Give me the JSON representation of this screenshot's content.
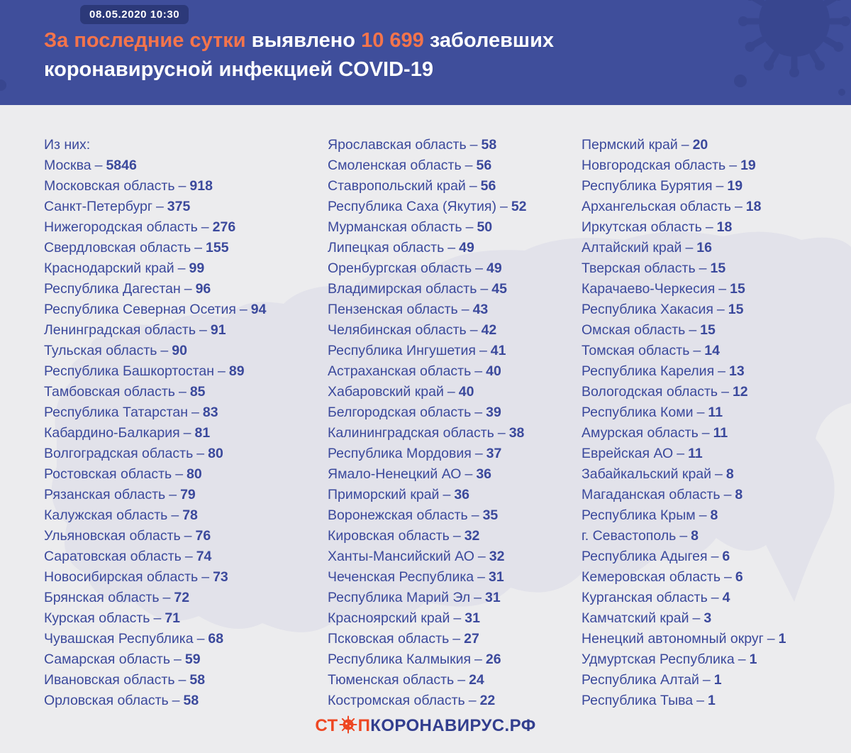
{
  "header": {
    "datetime": "08.05.2020 10:30",
    "title": {
      "highlight": "За последние сутки",
      "mid": " выявлено ",
      "number": "10 699",
      "tail": " заболевших",
      "line2": "коронавирусной инфекцией COVID-19"
    }
  },
  "body": {
    "intro": "Из них:",
    "separator": "–",
    "columns": [
      [
        {
          "region": "Москва",
          "value": "5846"
        },
        {
          "region": "Московская область",
          "value": "918"
        },
        {
          "region": "Санкт-Петербург",
          "value": "375"
        },
        {
          "region": "Нижегородская область",
          "value": "276"
        },
        {
          "region": "Свердловская область",
          "value": "155"
        },
        {
          "region": "Краснодарский край",
          "value": "99"
        },
        {
          "region": "Республика Дагестан",
          "value": "96"
        },
        {
          "region": "Республика Северная Осетия",
          "value": "94"
        },
        {
          "region": "Ленинградская область",
          "value": "91"
        },
        {
          "region": "Тульская область",
          "value": "90"
        },
        {
          "region": "Республика Башкортостан",
          "value": "89"
        },
        {
          "region": "Тамбовская область",
          "value": "85"
        },
        {
          "region": "Республика Татарстан",
          "value": "83"
        },
        {
          "region": "Кабардино-Балкария",
          "value": "81"
        },
        {
          "region": "Волгоградская область",
          "value": "80"
        },
        {
          "region": "Ростовская область",
          "value": "80"
        },
        {
          "region": "Рязанская область",
          "value": "79"
        },
        {
          "region": "Калужская область",
          "value": "78"
        },
        {
          "region": "Ульяновская область",
          "value": "76"
        },
        {
          "region": "Саратовская область",
          "value": "74"
        },
        {
          "region": "Новосибирская область",
          "value": "73"
        },
        {
          "region": "Брянская область",
          "value": "72"
        },
        {
          "region": "Курская область",
          "value": "71"
        },
        {
          "region": "Чувашская Республика",
          "value": "68"
        },
        {
          "region": "Самарская область",
          "value": "59"
        },
        {
          "region": "Ивановская область",
          "value": "58"
        },
        {
          "region": "Орловская область",
          "value": "58"
        }
      ],
      [
        {
          "region": "Ярославская область",
          "value": "58"
        },
        {
          "region": "Смоленская область",
          "value": "56"
        },
        {
          "region": "Ставропольский край",
          "value": "56"
        },
        {
          "region": "Республика Саха (Якутия)",
          "value": "52"
        },
        {
          "region": "Мурманская область",
          "value": "50"
        },
        {
          "region": "Липецкая область",
          "value": "49"
        },
        {
          "region": "Оренбургская область",
          "value": "49"
        },
        {
          "region": "Владимирская область",
          "value": "45"
        },
        {
          "region": "Пензенская область",
          "value": "43"
        },
        {
          "region": "Челябинская область",
          "value": "42"
        },
        {
          "region": "Республика Ингушетия",
          "value": "41"
        },
        {
          "region": "Астраханская область",
          "value": "40"
        },
        {
          "region": "Хабаровский край",
          "value": "40"
        },
        {
          "region": "Белгородская область",
          "value": "39"
        },
        {
          "region": "Калининградская область",
          "value": "38"
        },
        {
          "region": "Республика Мордовия",
          "value": "37"
        },
        {
          "region": "Ямало-Ненецкий АО",
          "value": "36"
        },
        {
          "region": "Приморский край",
          "value": "36"
        },
        {
          "region": "Воронежская область",
          "value": "35"
        },
        {
          "region": "Кировская область",
          "value": "32"
        },
        {
          "region": "Ханты-Мансийский АО",
          "value": "32"
        },
        {
          "region": "Чеченская Республика",
          "value": "31"
        },
        {
          "region": "Республика Марий Эл",
          "value": "31"
        },
        {
          "region": "Красноярский край",
          "value": "31"
        },
        {
          "region": "Псковская область",
          "value": "27"
        },
        {
          "region": "Республика Калмыкия",
          "value": "26"
        },
        {
          "region": "Тюменская область",
          "value": "24"
        },
        {
          "region": "Костромская область",
          "value": "22"
        }
      ],
      [
        {
          "region": "Пермский край",
          "value": "20"
        },
        {
          "region": "Новгородская область",
          "value": "19"
        },
        {
          "region": "Республика Бурятия",
          "value": "19"
        },
        {
          "region": "Архангельская область",
          "value": "18"
        },
        {
          "region": "Иркутская область",
          "value": "18"
        },
        {
          "region": "Алтайский край",
          "value": "16"
        },
        {
          "region": "Тверская область",
          "value": "15"
        },
        {
          "region": "Карачаево-Черкесия",
          "value": "15"
        },
        {
          "region": "Республика Хакасия",
          "value": "15"
        },
        {
          "region": "Омская область",
          "value": "15"
        },
        {
          "region": "Томская область",
          "value": "14"
        },
        {
          "region": "Республика Карелия",
          "value": "13"
        },
        {
          "region": "Вологодская область",
          "value": "12"
        },
        {
          "region": "Республика Коми",
          "value": "11"
        },
        {
          "region": "Амурская область",
          "value": "11"
        },
        {
          "region": "Еврейская АО",
          "value": "11"
        },
        {
          "region": "Забайкальский край",
          "value": "8"
        },
        {
          "region": "Магаданская область",
          "value": "8"
        },
        {
          "region": "Республика Крым",
          "value": "8"
        },
        {
          "region": "г. Севастополь",
          "value": "8"
        },
        {
          "region": "Республика Адыгея",
          "value": "6"
        },
        {
          "region": "Кемеровская область",
          "value": "6"
        },
        {
          "region": "Курганская область",
          "value": "4"
        },
        {
          "region": "Камчатский край",
          "value": "3"
        },
        {
          "region": "Ненецкий автономный округ",
          "value": "1"
        },
        {
          "region": "Удмуртская Республика",
          "value": "1"
        },
        {
          "region": "Республика Алтай",
          "value": "1"
        },
        {
          "region": "Республика Тыва",
          "value": "1"
        }
      ]
    ]
  },
  "footer": {
    "logo_part1": "СТ",
    "logo_part2": "П",
    "logo_part3": "КОРОНАВИРУС.РФ"
  },
  "colors": {
    "header_bg": "#3f4e9b",
    "badge_bg": "#2c3979",
    "accent_orange": "#f4744b",
    "body_bg": "#ececee",
    "map_gray": "#e2e2ea",
    "text_navy": "#3b499c",
    "logo_red": "#ee4723",
    "logo_navy": "#323e8e"
  }
}
